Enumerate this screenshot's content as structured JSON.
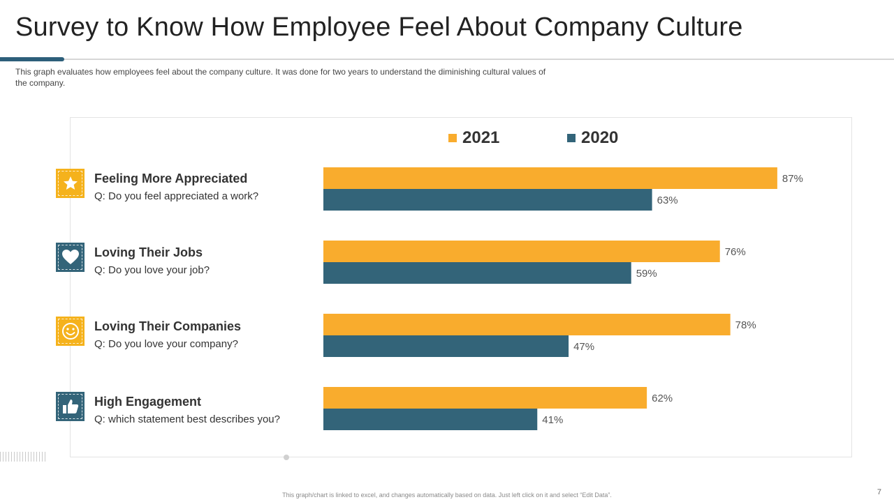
{
  "title": "Survey to Know How Employee Feel About Company Culture",
  "subtitle": "This graph evaluates how employees feel about the company culture. It was done for two years to understand the diminishing cultural values of the company.",
  "footer": "This graph/chart is linked to excel, and changes automatically based on data. Just left click on it and select “Edit Data”.",
  "page_number": "7",
  "colors": {
    "2021": "#f9ac2d",
    "2020": "#336479",
    "accent": "#2d5f7a"
  },
  "categories": [
    {
      "title": "Feeling More Appreciated",
      "question": "Q: Do you feel appreciated a work?",
      "icon": "star-icon",
      "icon_color": "gold"
    },
    {
      "title": "Loving Their Jobs",
      "question": "Q: Do you love your job?",
      "icon": "heart-icon",
      "icon_color": "blue"
    },
    {
      "title": "Loving Their Companies",
      "question": "Q: Do you love your company?",
      "icon": "smiley-icon",
      "icon_color": "gold"
    },
    {
      "title": "High Engagement",
      "question": "Q: which statement best describes you?",
      "icon": "thumbs-up-icon",
      "icon_color": "blue"
    }
  ],
  "chart_data": {
    "type": "bar",
    "orientation": "horizontal",
    "categories": [
      "Feeling More Appreciated",
      "Loving Their Jobs",
      "Loving Their Companies",
      "High Engagement"
    ],
    "series": [
      {
        "name": "2021",
        "values": [
          87,
          76,
          78,
          62
        ],
        "labels": [
          "87%",
          "76%",
          "78%",
          "62%"
        ]
      },
      {
        "name": "2020",
        "values": [
          63,
          59,
          47,
          41
        ],
        "labels": [
          "63%",
          "59%",
          "47%",
          "41%"
        ]
      }
    ],
    "xlim": [
      0,
      100
    ],
    "legend": "top-center",
    "grid": false
  }
}
